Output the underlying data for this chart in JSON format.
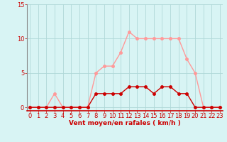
{
  "x": [
    0,
    1,
    2,
    3,
    4,
    5,
    6,
    7,
    8,
    9,
    10,
    11,
    12,
    13,
    14,
    15,
    16,
    17,
    18,
    19,
    20,
    21,
    22,
    23
  ],
  "wind_avg": [
    0,
    0,
    0,
    0,
    0,
    0,
    0,
    0,
    2,
    2,
    2,
    2,
    3,
    3,
    3,
    2,
    3,
    3,
    2,
    2,
    0,
    0,
    0,
    0
  ],
  "wind_gust": [
    0,
    0,
    0,
    2,
    0,
    0,
    0,
    0,
    5,
    6,
    6,
    8,
    11,
    10,
    10,
    10,
    10,
    10,
    10,
    7,
    5,
    0,
    0,
    0
  ],
  "xlim": [
    -0.3,
    23.3
  ],
  "ylim": [
    -0.5,
    15
  ],
  "yticks": [
    0,
    5,
    10,
    15
  ],
  "xticks": [
    0,
    1,
    2,
    3,
    4,
    5,
    6,
    7,
    8,
    9,
    10,
    11,
    12,
    13,
    14,
    15,
    16,
    17,
    18,
    19,
    20,
    21,
    22,
    23
  ],
  "xlabel": "Vent moyen/en rafales ( km/h )",
  "bg_color": "#d8f4f4",
  "grid_color": "#b0d8d8",
  "line_avg_color": "#cc0000",
  "line_gust_color": "#ff9999",
  "marker_size": 2.5,
  "line_width": 1.0,
  "label_fontsize": 6.5,
  "tick_fontsize": 6,
  "axis_color": "#cc0000",
  "spine_color": "#888888"
}
